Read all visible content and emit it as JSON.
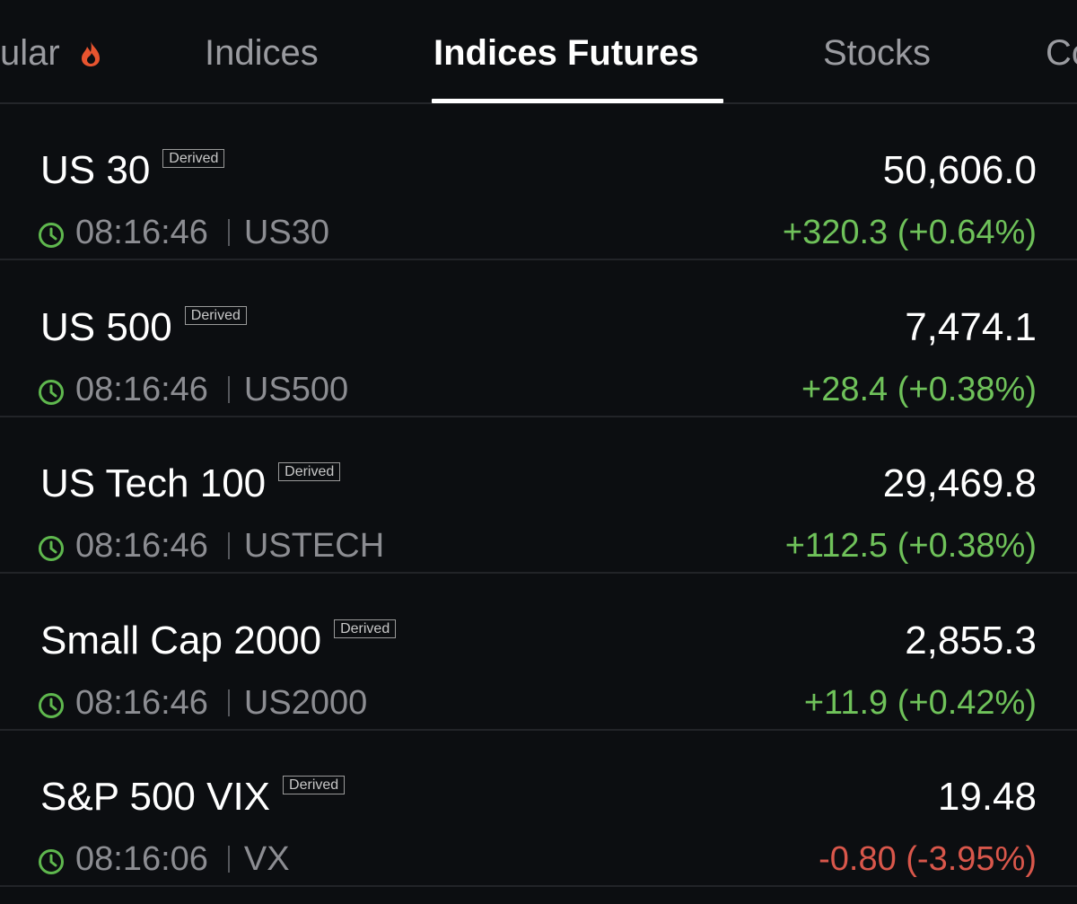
{
  "tabs": [
    {
      "label": "ular"
    },
    {
      "label": "Indices"
    },
    {
      "label": "Indices Futures",
      "selected": true
    },
    {
      "label": "Stocks"
    },
    {
      "label": "Co"
    }
  ],
  "rows": [
    {
      "name": "US 30",
      "badge": "Derived",
      "price": "50,606.0",
      "time": "08:16:46",
      "symbol": "US30",
      "change": "+320.3 (+0.64%)"
    },
    {
      "name": "US 500",
      "badge": "Derived",
      "price": "7,474.1",
      "time": "08:16:46",
      "symbol": "US500",
      "change": "+28.4 (+0.38%)"
    },
    {
      "name": "US Tech 100",
      "badge": "Derived",
      "price": "29,469.8",
      "time": "08:16:46",
      "symbol": "USTECH",
      "change": "+112.5 (+0.38%)"
    },
    {
      "name": "Small Cap 2000",
      "badge": "Derived",
      "price": "2,855.3",
      "time": "08:16:46",
      "symbol": "US2000",
      "change": "+11.9 (+0.42%)"
    },
    {
      "name": "S&P 500 VIX",
      "badge": "Derived",
      "price": "19.48",
      "time": "08:16:06",
      "symbol": "VX",
      "change": "-0.80 (-3.95%)"
    }
  ]
}
